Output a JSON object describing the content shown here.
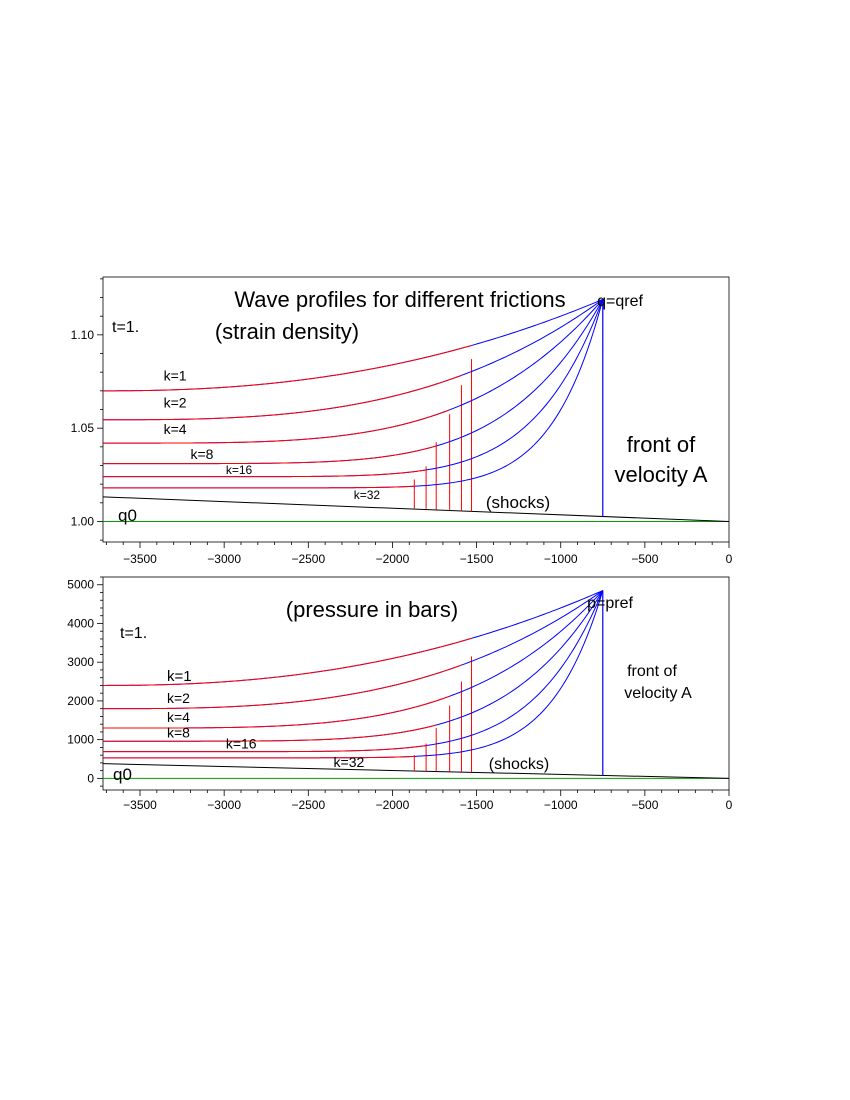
{
  "chart_data": [
    {
      "type": "line",
      "title": "Wave profiles for different frictions",
      "subtitle": "(strain density)",
      "time_label": "t=1.",
      "xlim": [
        -3720,
        0
      ],
      "ylim": [
        0.989,
        1.131
      ],
      "grid": false,
      "x_ticks": [
        -3500,
        -3000,
        -2500,
        -2000,
        -1500,
        -1000,
        -500,
        0
      ],
      "x_tick_labels": [
        "−3500",
        "−3000",
        "−2500",
        "−2000",
        "−1500",
        "−1000",
        "−500",
        "0"
      ],
      "y_ticks": [
        1.0,
        1.05,
        1.1
      ],
      "y_tick_labels": [
        "1.00",
        "1.05",
        "1.10"
      ],
      "front_x": -750,
      "peak_y": 1.119,
      "front_label_top": "q=qref",
      "front_label_lines": [
        "front of",
        "velocity A"
      ],
      "baseline_label": "q0",
      "shocks_label": "(shocks)",
      "baseline": {
        "x": [
          -3720,
          0
        ],
        "y": [
          1.0,
          1.0
        ]
      },
      "initial_profile": {
        "x": [
          -3720,
          0
        ],
        "y": [
          1.0132,
          1.0
        ]
      },
      "series": [
        {
          "name": "k=1",
          "left_y": 1.07,
          "shock_x": -1530,
          "shock_top": 1.087,
          "shock_bottom": 1.0055,
          "exponent": 2.3
        },
        {
          "name": "k=2",
          "left_y": 1.0545,
          "shock_x": -1590,
          "shock_top": 1.073,
          "shock_bottom": 1.006,
          "exponent": 3.0
        },
        {
          "name": "k=4",
          "left_y": 1.042,
          "shock_x": -1660,
          "shock_top": 1.0575,
          "shock_bottom": 1.0062,
          "exponent": 4.0
        },
        {
          "name": "k=8",
          "left_y": 1.031,
          "shock_x": -1740,
          "shock_top": 1.0425,
          "shock_bottom": 1.0065,
          "exponent": 5.5
        },
        {
          "name": "k=16",
          "left_y": 1.024,
          "shock_x": -1800,
          "shock_top": 1.0295,
          "shock_bottom": 1.0068,
          "exponent": 7.5
        },
        {
          "name": "k=32",
          "left_y": 1.018,
          "shock_x": -1870,
          "shock_top": 1.0225,
          "shock_bottom": 1.007,
          "exponent": 10.0
        }
      ],
      "labels": [
        {
          "text": "k=1",
          "x": -3360,
          "y": 1.0755
        },
        {
          "text": "k=2",
          "x": -3360,
          "y": 1.061
        },
        {
          "text": "k=4",
          "x": -3360,
          "y": 1.047
        },
        {
          "text": "k=8",
          "x": -3200,
          "y": 1.0335
        },
        {
          "text": "k=16",
          "x": -2990,
          "y": 1.0255
        },
        {
          "text": "k=32",
          "x": -2230,
          "y": 1.012
        }
      ]
    },
    {
      "type": "line",
      "title": "(pressure in bars)",
      "time_label": "t=1.",
      "xlim": [
        -3720,
        0
      ],
      "ylim": [
        -300,
        5200
      ],
      "grid": false,
      "x_ticks": [
        -3500,
        -3000,
        -2500,
        -2000,
        -1500,
        -1000,
        -500,
        0
      ],
      "x_tick_labels": [
        "−3500",
        "−3000",
        "−2500",
        "−2000",
        "−1500",
        "−1000",
        "−500",
        "0"
      ],
      "y_ticks": [
        0,
        1000,
        2000,
        3000,
        4000,
        5000
      ],
      "y_tick_labels": [
        "0",
        "1000",
        "2000",
        "3000",
        "4000",
        "5000"
      ],
      "front_x": -750,
      "peak_y": 4850,
      "front_label_top": "p=pref",
      "front_label_lines": [
        "front of",
        "velocity A"
      ],
      "baseline_label": "q0",
      "shocks_label": "(shocks)",
      "baseline": {
        "x": [
          -3720,
          0
        ],
        "y": [
          0,
          0
        ]
      },
      "initial_profile": {
        "x": [
          -3720,
          0
        ],
        "y": [
          380,
          0
        ]
      },
      "series": [
        {
          "name": "k=1",
          "left_y": 2400,
          "shock_x": -1530,
          "shock_top": 3150,
          "shock_bottom": 160,
          "exponent": 2.3
        },
        {
          "name": "k=2",
          "left_y": 1800,
          "shock_x": -1590,
          "shock_top": 2500,
          "shock_bottom": 165,
          "exponent": 3.0
        },
        {
          "name": "k=4",
          "left_y": 1300,
          "shock_x": -1660,
          "shock_top": 1880,
          "shock_bottom": 170,
          "exponent": 4.0
        },
        {
          "name": "k=8",
          "left_y": 960,
          "shock_x": -1740,
          "shock_top": 1300,
          "shock_bottom": 175,
          "exponent": 5.5
        },
        {
          "name": "k=16",
          "left_y": 690,
          "shock_x": -1800,
          "shock_top": 900,
          "shock_bottom": 180,
          "exponent": 7.5
        },
        {
          "name": "k=32",
          "left_y": 530,
          "shock_x": -1870,
          "shock_top": 600,
          "shock_bottom": 185,
          "exponent": 10.0
        }
      ],
      "labels": [
        {
          "text": "k=1",
          "x": -3340,
          "y": 2520
        },
        {
          "text": "k=2",
          "x": -3340,
          "y": 1950
        },
        {
          "text": "k=4",
          "x": -3340,
          "y": 1450
        },
        {
          "text": "k=8",
          "x": -3340,
          "y": 1060
        },
        {
          "text": "k=16",
          "x": -2990,
          "y": 770
        },
        {
          "text": "k=32",
          "x": -2350,
          "y": 300
        }
      ]
    }
  ],
  "colors": {
    "profile": "#0000ff",
    "segment": "#ff0000",
    "baseline": "#00a000",
    "initial": "#000000",
    "axis": "#000000"
  }
}
